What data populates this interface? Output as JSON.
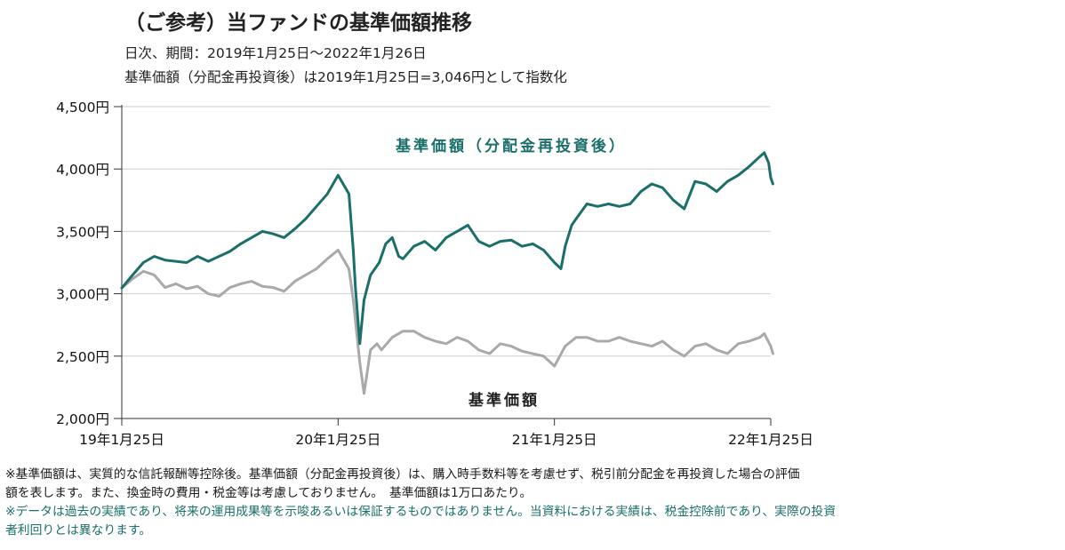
{
  "header": {
    "title": "（ご参考）当ファンドの基準価額推移",
    "subtitle": "日次、期間：2019年1月25日～2022年1月26日",
    "subtitle2": "基準価額（分配金再投資後）は2019年1月25日=3,046円として指数化"
  },
  "notes": {
    "line1": "※基準価額は、実質的な信託報酬等控除後。基準価額（分配金再投資後）は、購入時手数料等を考慮せず、税引前分配金を再投資した場合の評価",
    "line2": "額を表します。また、換金時の費用・税金等は考慮しておりません。　基準価額は1万口あたり。",
    "line3": "※データは過去の実績であり、将来の運用成果等を示唆あるいは保証するものではありません。当資料における実績は、税金控除前であり、実際の投資",
    "line4": "者利回りとは異なります。"
  },
  "chart_data": {
    "type": "line",
    "ylim": [
      2000,
      4500
    ],
    "y_ticks": [
      2000,
      2500,
      3000,
      3500,
      4000,
      4500
    ],
    "y_tick_labels": [
      "2,000円",
      "2,500円",
      "3,000円",
      "3,500円",
      "4,000円",
      "4,500円"
    ],
    "x_ticks": [
      0,
      1,
      2,
      3
    ],
    "x_tick_labels": [
      "19年1月25日",
      "20年1月25日",
      "21年1月25日",
      "22年1月25日"
    ],
    "grid": true,
    "colors": {
      "reinvested": "#1a6f6a",
      "nav": "#a9a9a9"
    },
    "series": [
      {
        "name": "基準価額（分配金再投資後）",
        "key": "reinvested",
        "x": [
          0,
          0.05,
          0.1,
          0.15,
          0.2,
          0.3,
          0.35,
          0.4,
          0.45,
          0.5,
          0.55,
          0.6,
          0.65,
          0.7,
          0.75,
          0.8,
          0.85,
          0.9,
          0.95,
          1.0,
          1.05,
          1.07,
          1.08,
          1.1,
          1.12,
          1.15,
          1.17,
          1.19,
          1.22,
          1.25,
          1.28,
          1.3,
          1.35,
          1.4,
          1.45,
          1.5,
          1.55,
          1.6,
          1.65,
          1.7,
          1.75,
          1.8,
          1.85,
          1.9,
          1.95,
          2.0,
          2.03,
          2.05,
          2.08,
          2.1,
          2.15,
          2.2,
          2.25,
          2.3,
          2.35,
          2.4,
          2.45,
          2.5,
          2.55,
          2.6,
          2.65,
          2.7,
          2.75,
          2.8,
          2.85,
          2.9,
          2.95,
          2.97,
          2.99,
          3.0,
          3.01
        ],
        "values": [
          3046,
          3150,
          3250,
          3300,
          3270,
          3250,
          3300,
          3260,
          3300,
          3340,
          3400,
          3450,
          3500,
          3480,
          3450,
          3520,
          3600,
          3700,
          3800,
          3950,
          3800,
          3350,
          3050,
          2600,
          2950,
          3150,
          3200,
          3250,
          3400,
          3450,
          3300,
          3280,
          3380,
          3420,
          3350,
          3450,
          3500,
          3550,
          3420,
          3380,
          3420,
          3430,
          3380,
          3400,
          3350,
          3250,
          3200,
          3380,
          3550,
          3600,
          3720,
          3700,
          3720,
          3700,
          3720,
          3820,
          3880,
          3850,
          3750,
          3680,
          3900,
          3880,
          3820,
          3900,
          3950,
          4020,
          4100,
          4130,
          4050,
          3930,
          3880
        ]
      },
      {
        "name": "基準価額",
        "key": "nav",
        "x": [
          0,
          0.05,
          0.1,
          0.15,
          0.2,
          0.25,
          0.3,
          0.35,
          0.4,
          0.45,
          0.5,
          0.55,
          0.6,
          0.65,
          0.7,
          0.75,
          0.8,
          0.85,
          0.9,
          0.95,
          1.0,
          1.05,
          1.07,
          1.1,
          1.12,
          1.15,
          1.18,
          1.2,
          1.25,
          1.3,
          1.35,
          1.4,
          1.45,
          1.5,
          1.55,
          1.6,
          1.65,
          1.7,
          1.75,
          1.8,
          1.85,
          1.9,
          1.95,
          2.0,
          2.05,
          2.1,
          2.15,
          2.2,
          2.25,
          2.3,
          2.35,
          2.4,
          2.45,
          2.5,
          2.55,
          2.6,
          2.65,
          2.7,
          2.75,
          2.8,
          2.85,
          2.9,
          2.95,
          2.97,
          3.0,
          3.01
        ],
        "values": [
          3046,
          3120,
          3180,
          3150,
          3050,
          3080,
          3040,
          3060,
          3000,
          2980,
          3050,
          3080,
          3100,
          3060,
          3050,
          3020,
          3100,
          3150,
          3200,
          3280,
          3350,
          3200,
          2950,
          2450,
          2200,
          2550,
          2600,
          2550,
          2650,
          2700,
          2700,
          2650,
          2620,
          2600,
          2650,
          2620,
          2550,
          2520,
          2600,
          2580,
          2540,
          2520,
          2500,
          2420,
          2580,
          2650,
          2650,
          2620,
          2620,
          2650,
          2620,
          2600,
          2580,
          2620,
          2550,
          2500,
          2580,
          2600,
          2550,
          2520,
          2600,
          2620,
          2650,
          2680,
          2580,
          2520
        ]
      }
    ]
  }
}
